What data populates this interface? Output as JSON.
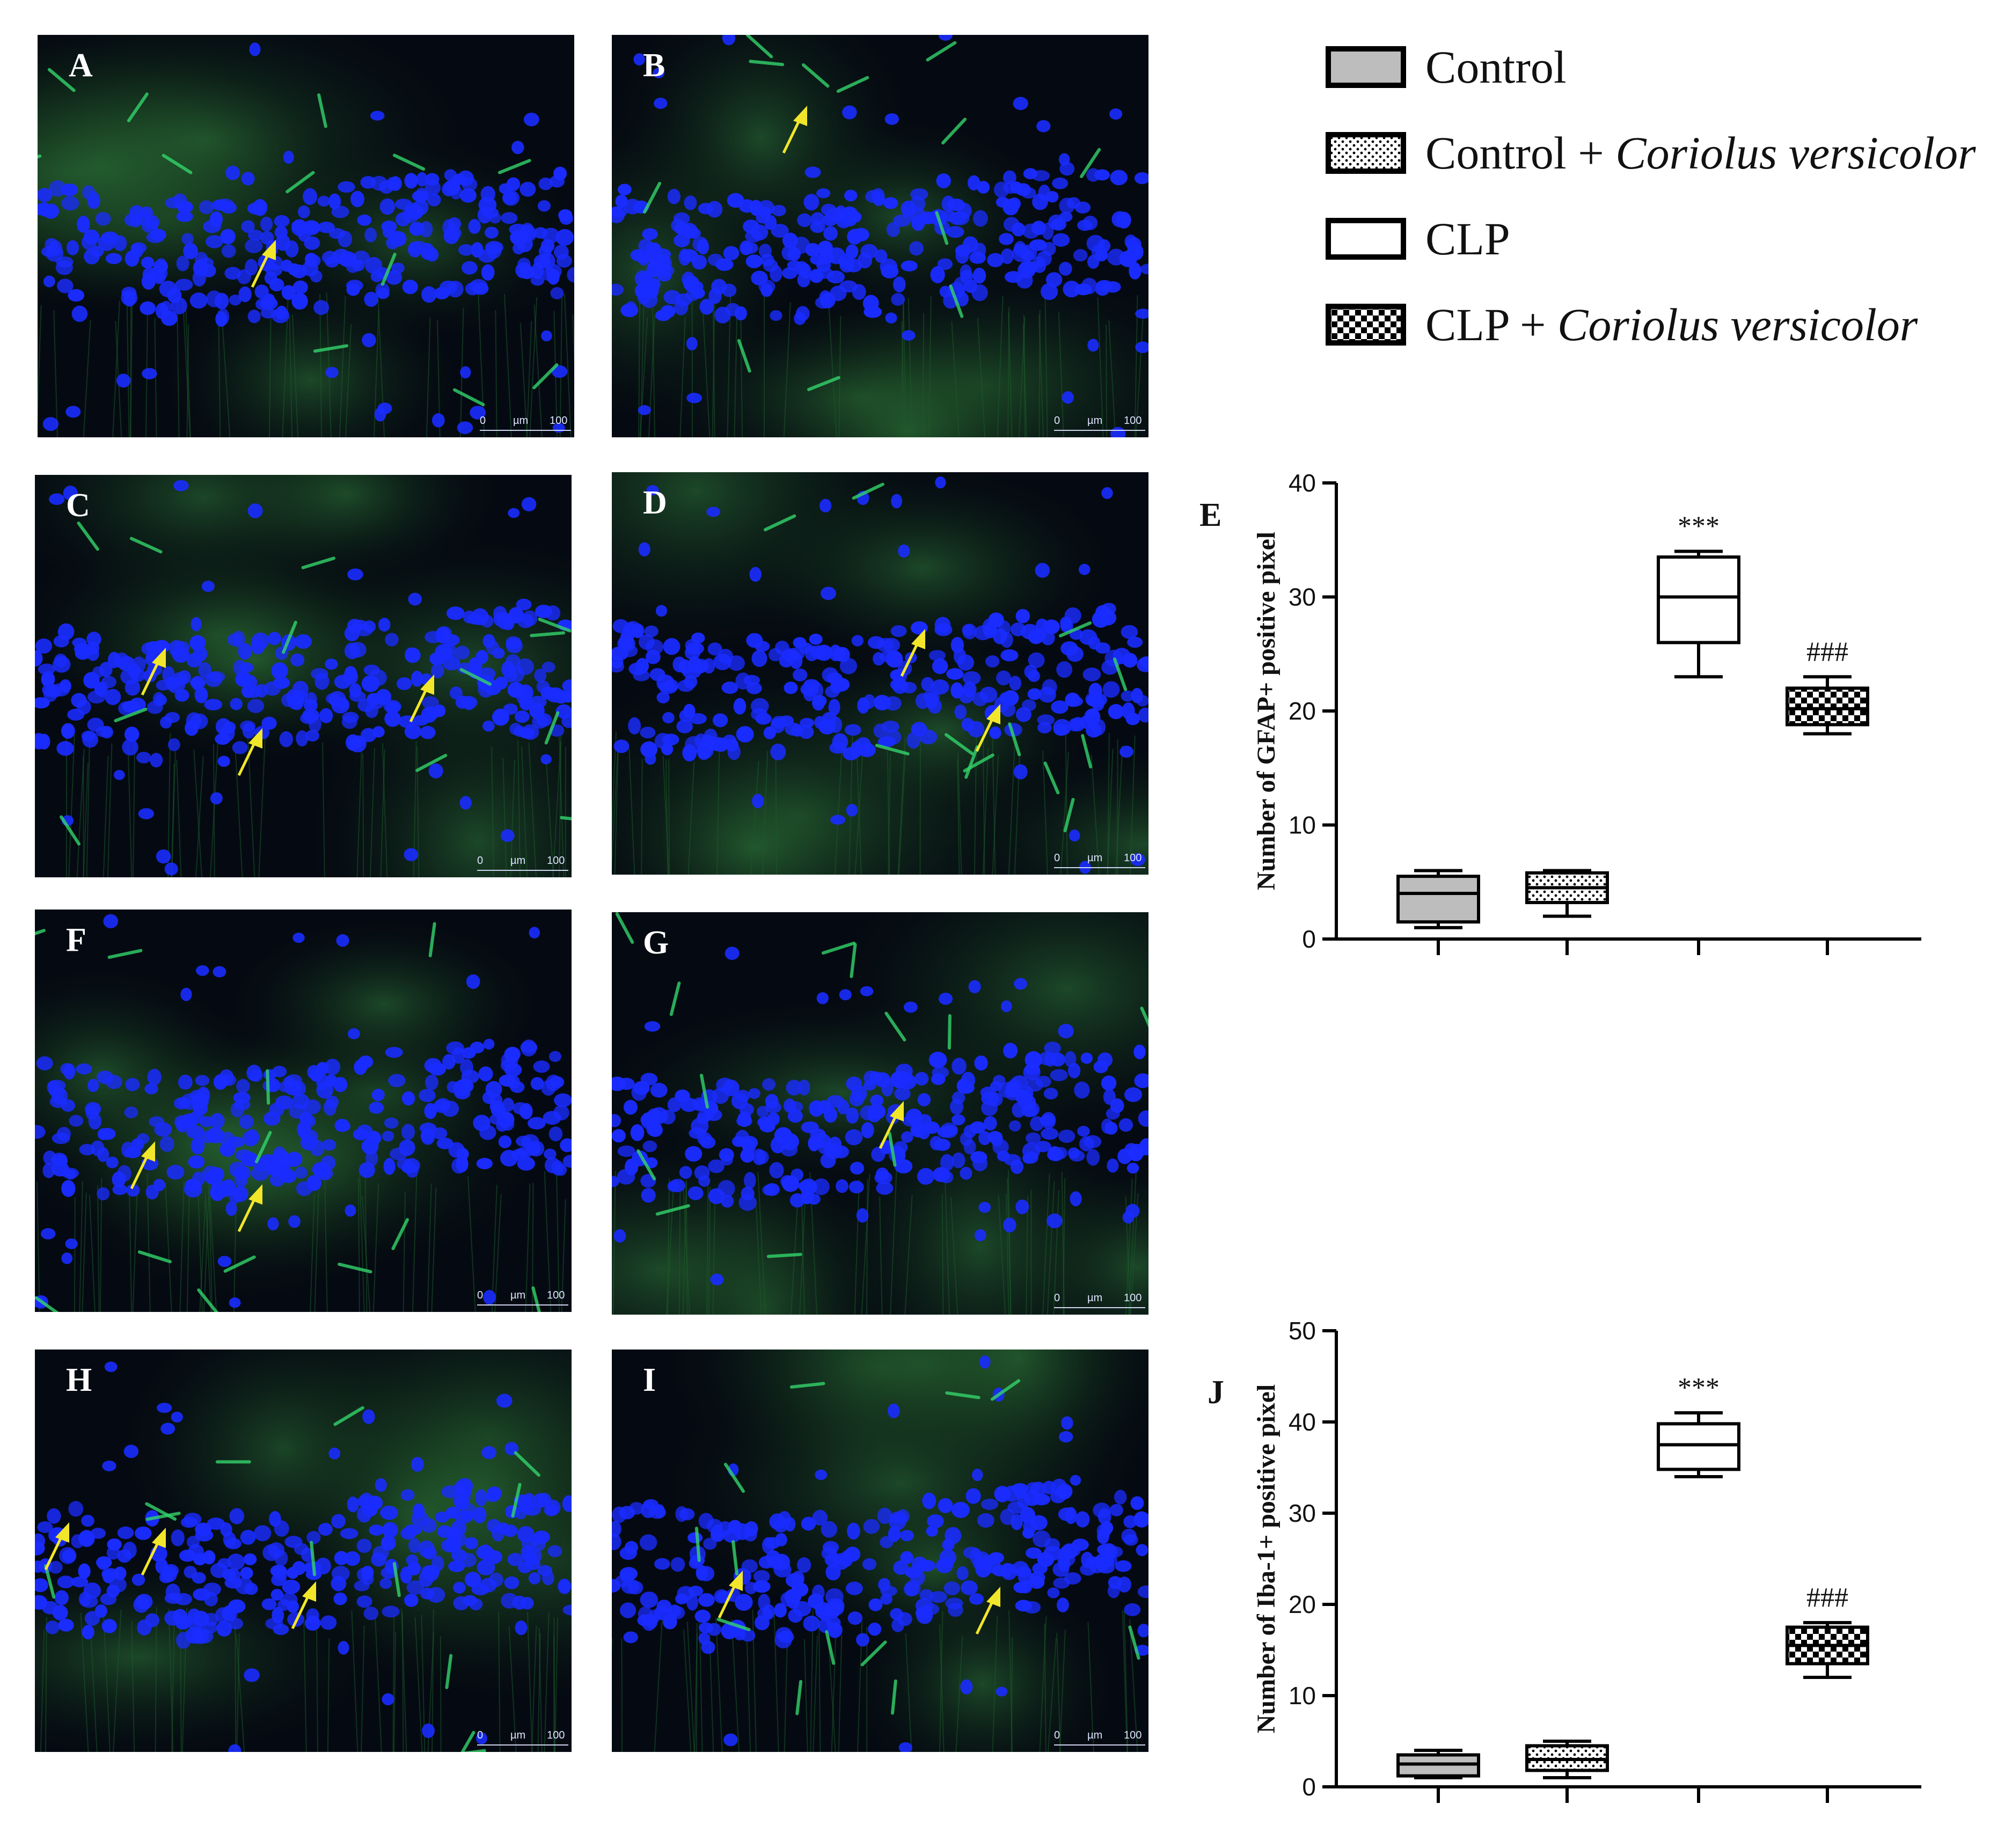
{
  "panels": [
    {
      "letter": "A",
      "scale": {
        "start": "0",
        "unit": "µm",
        "end": "100"
      }
    },
    {
      "letter": "B",
      "scale": {
        "start": "0",
        "unit": "µm",
        "end": "100"
      }
    },
    {
      "letter": "C",
      "scale": {
        "start": "0",
        "unit": "µm",
        "end": "100"
      }
    },
    {
      "letter": "D",
      "scale": {
        "start": "0",
        "unit": "µm",
        "end": "100"
      }
    },
    {
      "letter": "F",
      "scale": {
        "start": "0",
        "unit": "µm",
        "end": "100"
      }
    },
    {
      "letter": "G",
      "scale": {
        "start": "0",
        "unit": "µm",
        "end": "100"
      }
    },
    {
      "letter": "H",
      "scale": {
        "start": "0",
        "unit": "µm",
        "end": "100"
      }
    },
    {
      "letter": "I",
      "scale": {
        "start": "0",
        "unit": "µm",
        "end": "100"
      }
    }
  ],
  "legend": [
    {
      "label": "Control",
      "italic": "",
      "pattern": "gray"
    },
    {
      "label": "Control + ",
      "italic": "Coriolus versicolor",
      "pattern": "dots"
    },
    {
      "label": "CLP",
      "italic": "",
      "pattern": "white"
    },
    {
      "label": "CLP + ",
      "italic": "Coriolus versicolor",
      "pattern": "checker"
    }
  ],
  "colors": {
    "nuclei": "#1a2cff",
    "glia": "#33d46b",
    "arrow": "#f2e62b",
    "box_gray": "#bdbdbd",
    "axis": "#000000"
  },
  "chart_data": [
    {
      "type": "box",
      "panel_letter": "E",
      "ylabel": "Number of GFAP+ positive pixel",
      "ylim": [
        0,
        40
      ],
      "yticks": [
        0,
        10,
        20,
        30,
        40
      ],
      "categories": [
        "Control",
        "Control + Coriolus versicolor",
        "CLP",
        "CLP + Coriolus versicolor"
      ],
      "boxes": [
        {
          "min": 1,
          "q1": 1.5,
          "median": 4,
          "q3": 5.5,
          "max": 6,
          "annotation": ""
        },
        {
          "min": 2,
          "q1": 3.2,
          "median": 4.5,
          "q3": 5.8,
          "max": 6,
          "annotation": ""
        },
        {
          "min": 23,
          "q1": 26,
          "median": 30,
          "q3": 33.5,
          "max": 34,
          "annotation": "***"
        },
        {
          "min": 18,
          "q1": 18.8,
          "median": 20.2,
          "q3": 22,
          "max": 23,
          "annotation": "###"
        }
      ]
    },
    {
      "type": "box",
      "panel_letter": "J",
      "ylabel": "Number of Iba-1+ positive pixel",
      "ylim": [
        0,
        50
      ],
      "yticks": [
        0,
        10,
        20,
        30,
        40,
        50
      ],
      "categories": [
        "Control",
        "Control + Coriolus versicolor",
        "CLP",
        "CLP + Coriolus versicolor"
      ],
      "boxes": [
        {
          "min": 1,
          "q1": 1.2,
          "median": 2.5,
          "q3": 3.5,
          "max": 4,
          "annotation": ""
        },
        {
          "min": 1,
          "q1": 1.8,
          "median": 3,
          "q3": 4.5,
          "max": 5,
          "annotation": ""
        },
        {
          "min": 34,
          "q1": 34.8,
          "median": 37.5,
          "q3": 39.8,
          "max": 41,
          "annotation": "***"
        },
        {
          "min": 12,
          "q1": 13.5,
          "median": 15.5,
          "q3": 17.5,
          "max": 18,
          "annotation": "###"
        }
      ]
    }
  ]
}
